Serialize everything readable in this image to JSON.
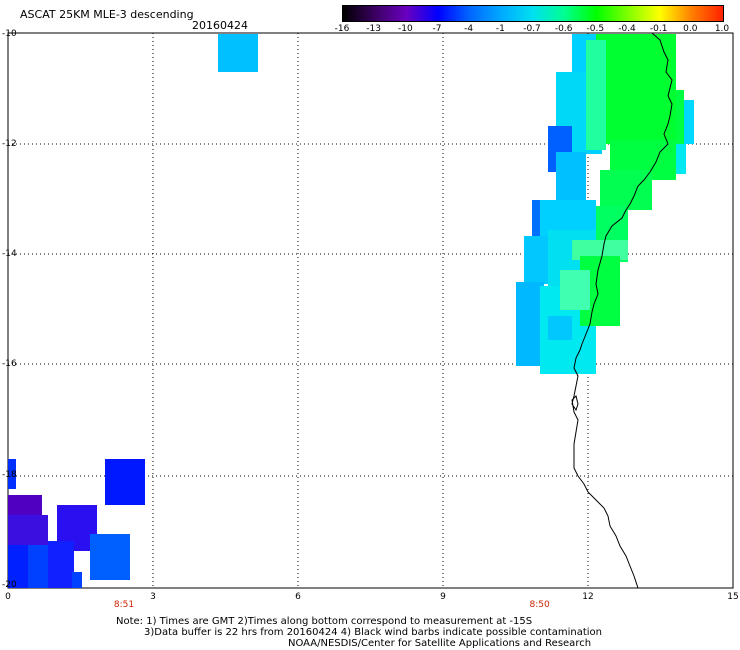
{
  "header": {
    "title": "ASCAT 25KM MLE-3 descending",
    "date": "20160424"
  },
  "colorbar": {
    "labels": [
      "-16",
      "-13",
      "-10",
      "-7",
      "-4",
      "-1",
      "-0.7",
      "-0.6",
      "-0.5",
      "-0.4",
      "-0.1",
      "0.0",
      "1.0"
    ],
    "colors": [
      "#000000",
      "#3a0060",
      "#6a00c0",
      "#0000ff",
      "#0066ff",
      "#00aaff",
      "#00e0f0",
      "#00ff90",
      "#00ff00",
      "#80ff00",
      "#ffff00",
      "#ff8000",
      "#ff2000"
    ]
  },
  "axes": {
    "y_ticks": [
      "-10",
      "-12",
      "-14",
      "-16",
      "-18",
      "-20"
    ],
    "x_ticks": [
      "0",
      "3",
      "6",
      "9",
      "12",
      "15"
    ],
    "time_labels": [
      {
        "label": "8:51",
        "x": 2.4
      },
      {
        "label": "8:50",
        "x": 11.0
      }
    ]
  },
  "notes": {
    "line1": "Note: 1) Times are GMT 2)Times along bottom correspond to measurement at -15S",
    "line2": "3)Data buffer is 22 hrs from 20160424 4) Black wind barbs indicate possible contamination",
    "line3": "NOAA/NESDIS/Center for Satellite Applications and Research"
  },
  "colors": {
    "cyan": "#00c0ff",
    "light_cyan": "#00e8f0",
    "green": "#00ff00",
    "blue": "#0030ff",
    "dark_blue": "#0010ff",
    "purple": "#4400b0"
  }
}
